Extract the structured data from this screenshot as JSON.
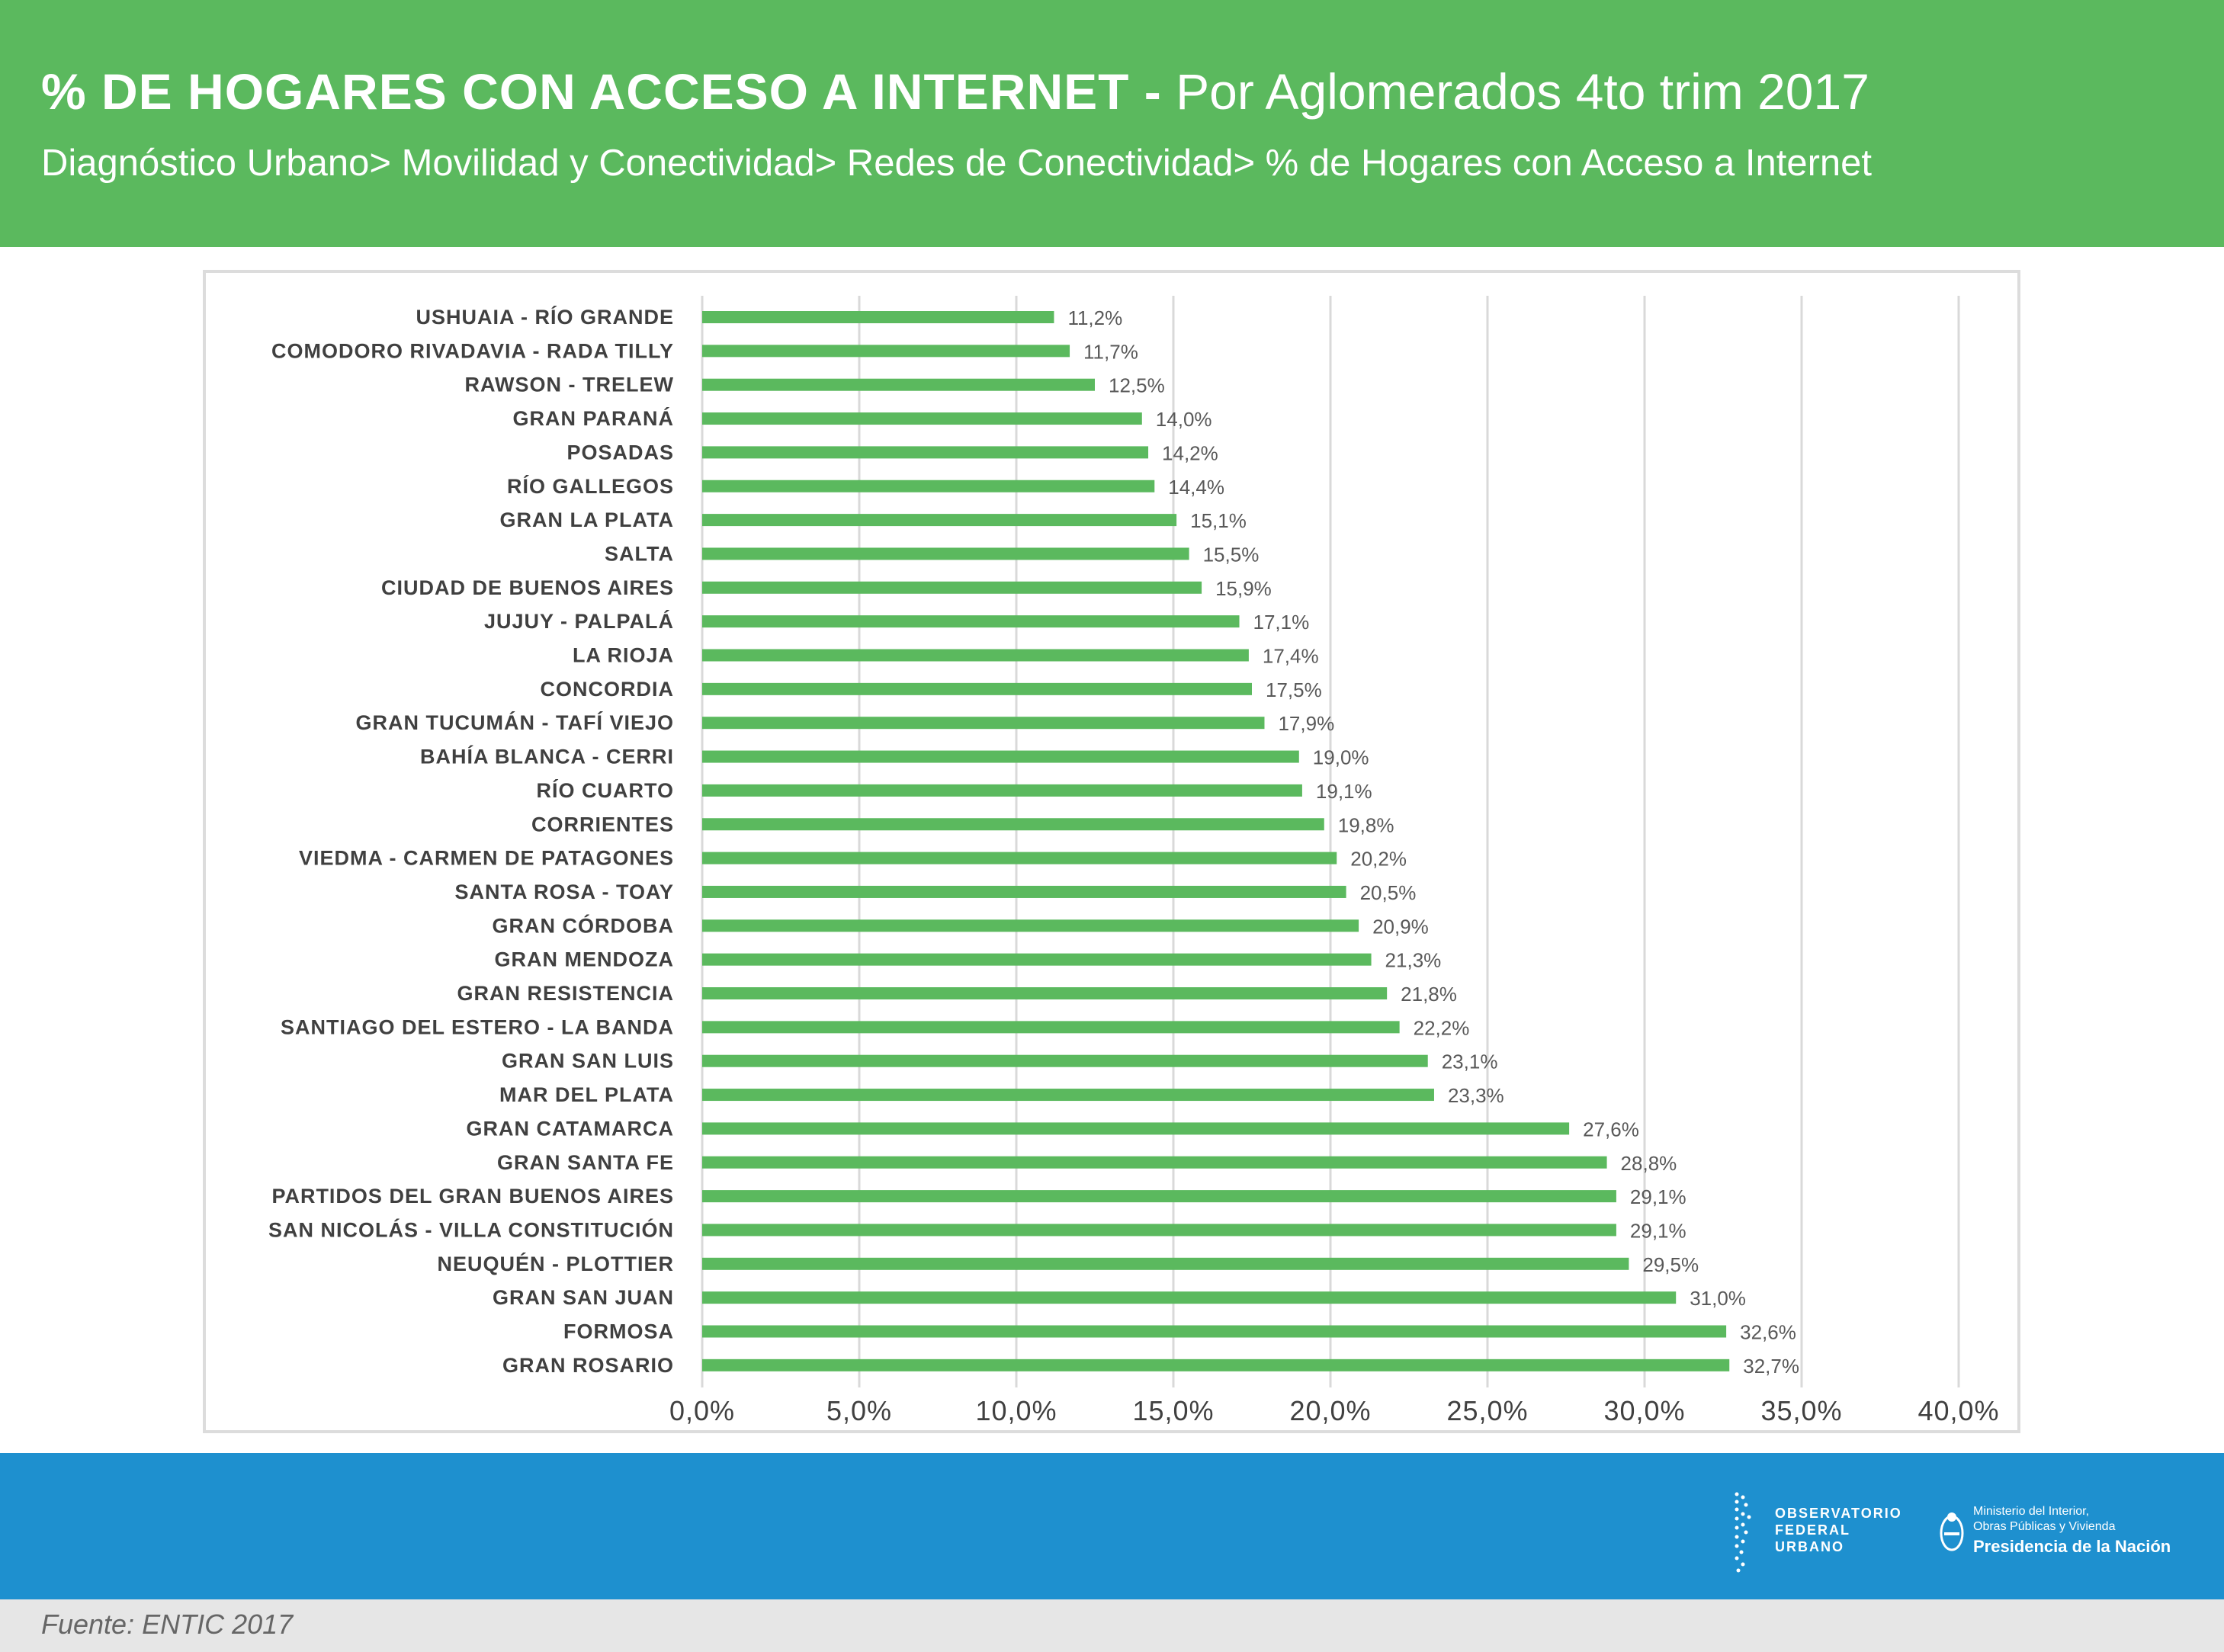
{
  "header": {
    "title_bold": "% DE HOGARES CON ACCESO A INTERNET -",
    "title_regular": "Por Aglomerados 4to trim 2017",
    "subtitle": "Diagnóstico Urbano> Movilidad y Conectividad> Redes de Conectividad> % de Hogares con Acceso a Internet"
  },
  "colors": {
    "header_bg": "#5bb95e",
    "bar": "#5bb95e",
    "footer_bg": "#1e90cf",
    "source_bg": "#e6e6e6"
  },
  "chart_data": {
    "type": "bar",
    "orientation": "horizontal",
    "categories": [
      "USHUAIA - RÍO GRANDE",
      "COMODORO RIVADAVIA - RADA TILLY",
      "RAWSON - TRELEW",
      "GRAN PARANÁ",
      "POSADAS",
      "RÍO GALLEGOS",
      "GRAN LA PLATA",
      "SALTA",
      "CIUDAD DE BUENOS AIRES",
      "JUJUY - PALPALÁ",
      "LA RIOJA",
      "CONCORDIA",
      "GRAN TUCUMÁN - TAFÍ VIEJO",
      "BAHÍA BLANCA - CERRI",
      "RÍO CUARTO",
      "CORRIENTES",
      "VIEDMA - CARMEN DE PATAGONES",
      "SANTA ROSA - TOAY",
      "GRAN CÓRDOBA",
      "GRAN MENDOZA",
      "GRAN RESISTENCIA",
      "SANTIAGO DEL ESTERO - LA BANDA",
      "GRAN SAN LUIS",
      "MAR DEL PLATA",
      "GRAN CATAMARCA",
      "GRAN SANTA FE",
      "PARTIDOS DEL GRAN BUENOS AIRES",
      "SAN NICOLÁS - VILLA CONSTITUCIÓN",
      "NEUQUÉN - PLOTTIER",
      "GRAN SAN JUAN",
      "FORMOSA",
      "GRAN ROSARIO"
    ],
    "values": [
      11.2,
      11.7,
      12.5,
      14.0,
      14.2,
      14.4,
      15.1,
      15.5,
      15.9,
      17.1,
      17.4,
      17.5,
      17.9,
      19.0,
      19.1,
      19.8,
      20.2,
      20.5,
      20.9,
      21.3,
      21.8,
      22.2,
      23.1,
      23.3,
      27.6,
      28.8,
      29.1,
      29.1,
      29.5,
      31.0,
      32.6,
      32.7
    ],
    "value_labels": [
      "11,2%",
      "11,7%",
      "12,5%",
      "14,0%",
      "14,2%",
      "14,4%",
      "15,1%",
      "15,5%",
      "15,9%",
      "17,1%",
      "17,4%",
      "17,5%",
      "17,9%",
      "19,0%",
      "19,1%",
      "19,8%",
      "20,2%",
      "20,5%",
      "20,9%",
      "21,3%",
      "21,8%",
      "22,2%",
      "23,1%",
      "23,3%",
      "27,6%",
      "28,8%",
      "29,1%",
      "29,1%",
      "29,5%",
      "31,0%",
      "32,6%",
      "32,7%"
    ],
    "xticks": [
      0,
      5,
      10,
      15,
      20,
      25,
      30,
      35,
      40
    ],
    "xtick_labels": [
      "0,0%",
      "5,0%",
      "10,0%",
      "15,0%",
      "20,0%",
      "25,0%",
      "30,0%",
      "35,0%",
      "40,0%"
    ],
    "xlim": [
      0,
      40
    ],
    "grid": "vertical"
  },
  "footer": {
    "source": "Fuente: ENTIC 2017",
    "ofu_logo": [
      "OBSERVATORIO",
      "FEDERAL",
      "URBANO"
    ],
    "ministry": [
      "Ministerio del Interior,",
      "Obras Públicas y Vivienda",
      "Presidencia de la Nación"
    ]
  }
}
